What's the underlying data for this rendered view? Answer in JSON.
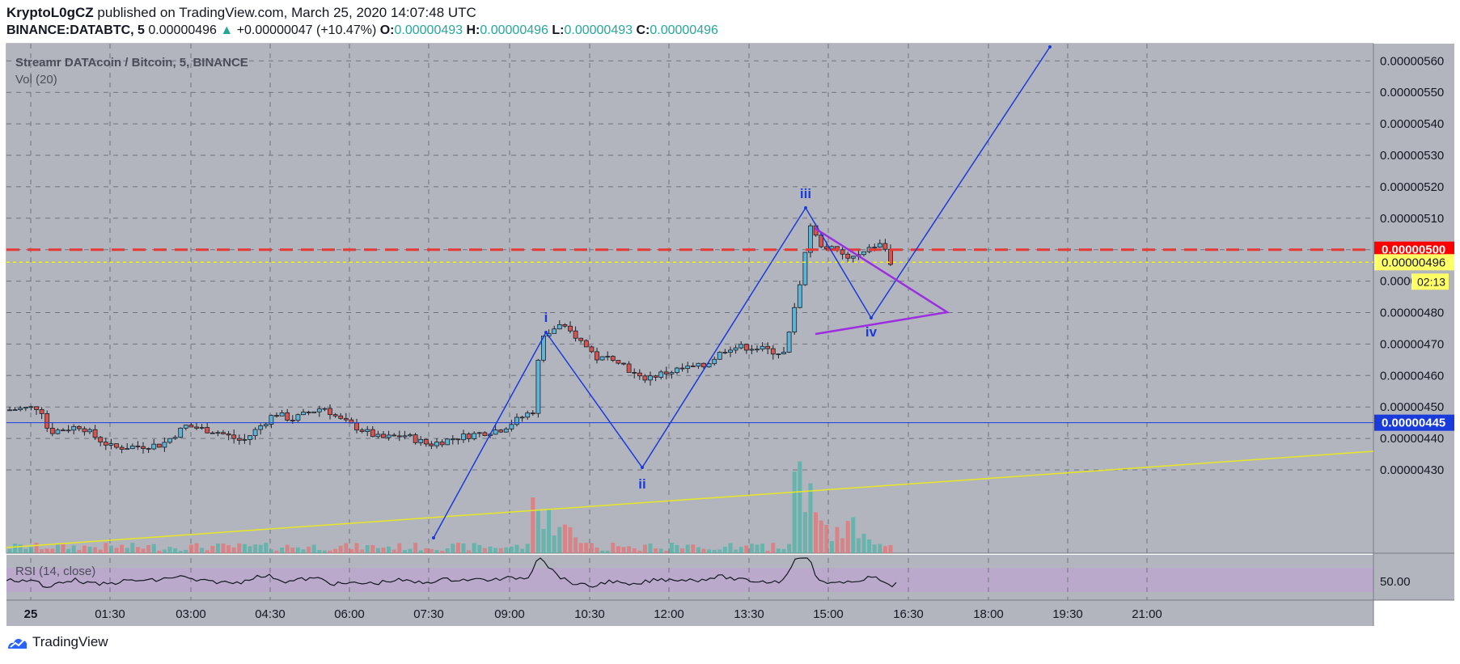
{
  "header": {
    "author": "KryptoL0gCZ",
    "published": "published on TradingView.com, March 25, 2020 14:07:48 UTC",
    "symbol": "BINANCE:DATABTC, 5",
    "last": "0.00000496",
    "change": "+0.00000047 (+10.47%)",
    "o_label": "O:",
    "o": "0.00000493",
    "h_label": "H:",
    "h": "0.00000496",
    "l_label": "L:",
    "l": "0.00000493",
    "c_label": "C:",
    "c": "0.00000496"
  },
  "chart_data": {
    "type": "candlestick",
    "legend_title": "Streamr DATAcoin / Bitcoin, 5, BINANCE",
    "volume_label": "Vol (20)",
    "rsi_label": "RSI (14, close)",
    "rsi_tick": "50.00",
    "ylim": [
      4.25e-06,
      5.67e-06
    ],
    "y_ticks": [
      "0.00000430",
      "0.00000440",
      "0.00000450",
      "0.00000460",
      "0.00000470",
      "0.00000480",
      "0.00000490",
      "0.00000500",
      "0.00000510",
      "0.00000520",
      "0.00000530",
      "0.00000540",
      "0.00000550",
      "0.00000560"
    ],
    "x_ticks": [
      "25",
      "01:30",
      "03:00",
      "04:30",
      "06:00",
      "07:30",
      "09:00",
      "10:30",
      "12:00",
      "13:30",
      "15:00",
      "16:30",
      "18:00",
      "19:30",
      "21:00"
    ],
    "price_labels": {
      "resistance": "0.00000500",
      "current": "0.00000496",
      "countdown": "02:13",
      "support": "0.00000445"
    },
    "resistance_level": 5e-06,
    "current_level": 4.96e-06,
    "support_level": 4.45e-06,
    "wave_labels": [
      "i",
      "ii",
      "iii",
      "iv"
    ],
    "colors": {
      "up": "#5db5d8",
      "down": "#d9534f",
      "wave": "#1a3bdb",
      "triangle": "#9b2fe0",
      "trend": "#e8e822",
      "resistance": "#e53935",
      "support": "#1a3bdb"
    }
  },
  "footer": {
    "brand": "TradingView"
  }
}
